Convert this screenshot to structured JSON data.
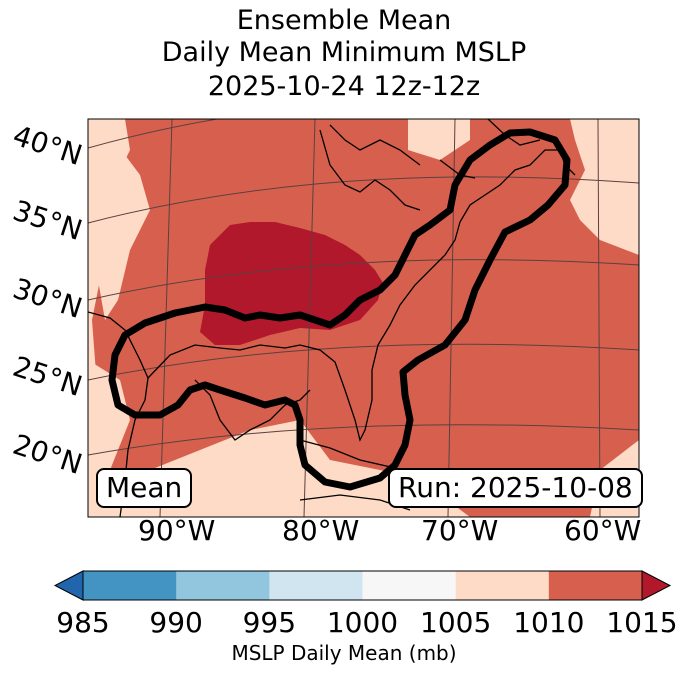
{
  "title": {
    "line1": "Ensemble Mean",
    "line2": "Daily Mean Minimum MSLP",
    "line3": "2025-10-24 12z-12z"
  },
  "map": {
    "lat_labels": [
      "40°N",
      "35°N",
      "30°N",
      "25°N",
      "20°N"
    ],
    "lon_labels": [
      "90°W",
      "80°W",
      "70°W",
      "60°W"
    ],
    "mean_box": "Mean",
    "run_box": "Run: 2025-10-08",
    "contour": "black outline of ensemble track region along US Gulf and East coasts",
    "colors": {
      "land_border": "#000000",
      "grid": "#5a4040"
    }
  },
  "colorbar": {
    "ticks": [
      "985",
      "990",
      "995",
      "1000",
      "1005",
      "1010",
      "1015"
    ],
    "colors": [
      "#2166ac",
      "#4393c3",
      "#92c5de",
      "#d1e5f0",
      "#f7f7f7",
      "#fddbc7",
      "#d6604d",
      "#b2182b"
    ],
    "label": "MSLP Daily Mean (mb)"
  }
}
